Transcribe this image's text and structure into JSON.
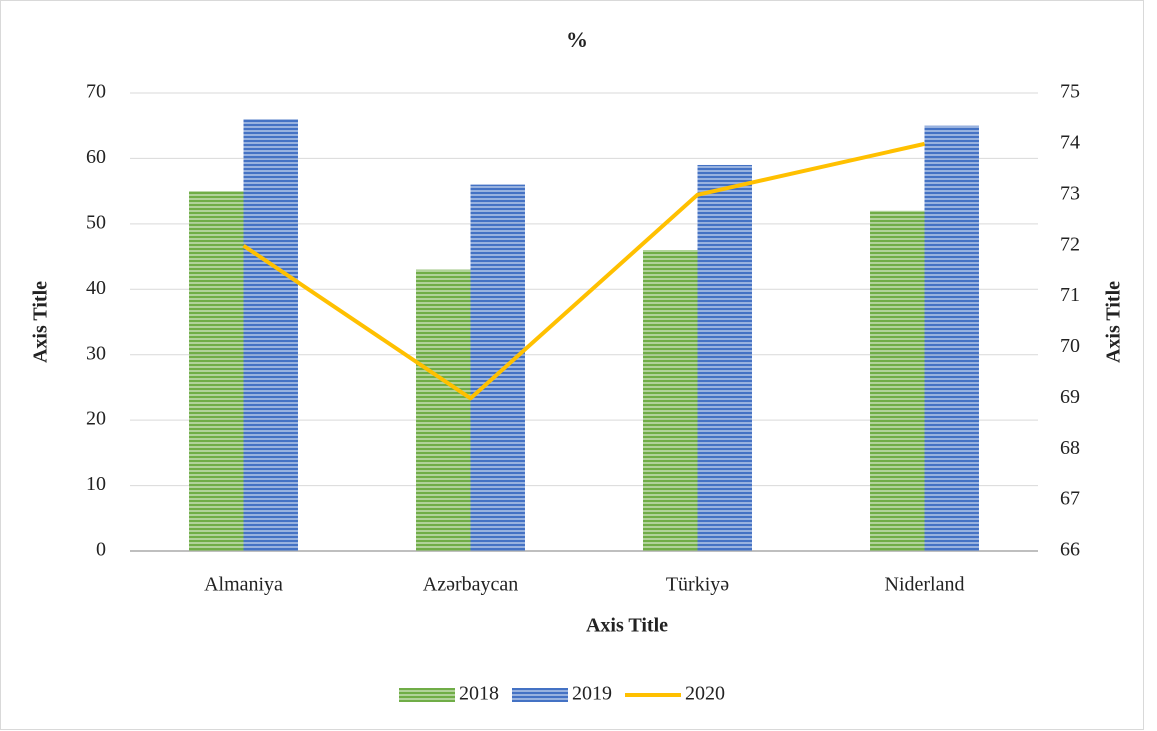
{
  "chart_data": {
    "type": "bar",
    "title": "%",
    "x_label": "Axis Title",
    "y_label": "Axis Title",
    "y2_label": "Axis Title",
    "categories": [
      "Almaniya",
      "Azərbaycan",
      "Türkiyə",
      "Niderland"
    ],
    "series": [
      {
        "name": "2018",
        "color": "#70ad47",
        "values": [
          55,
          43,
          46,
          52
        ]
      },
      {
        "name": "2019",
        "color": "#4472c4",
        "values": [
          66,
          56,
          59,
          65
        ]
      },
      {
        "name": "2020",
        "color": "#ffc000",
        "type": "line",
        "axis": "y2",
        "values": [
          72,
          69,
          73,
          74
        ]
      }
    ],
    "ylim": [
      0,
      70
    ],
    "yticks": [
      0,
      10,
      20,
      30,
      40,
      50,
      60,
      70
    ],
    "y2lim": [
      66,
      75
    ],
    "y2ticks": [
      66,
      67,
      68,
      69,
      70,
      71,
      72,
      73,
      74,
      75
    ],
    "grid": true,
    "legend": "bottom"
  }
}
